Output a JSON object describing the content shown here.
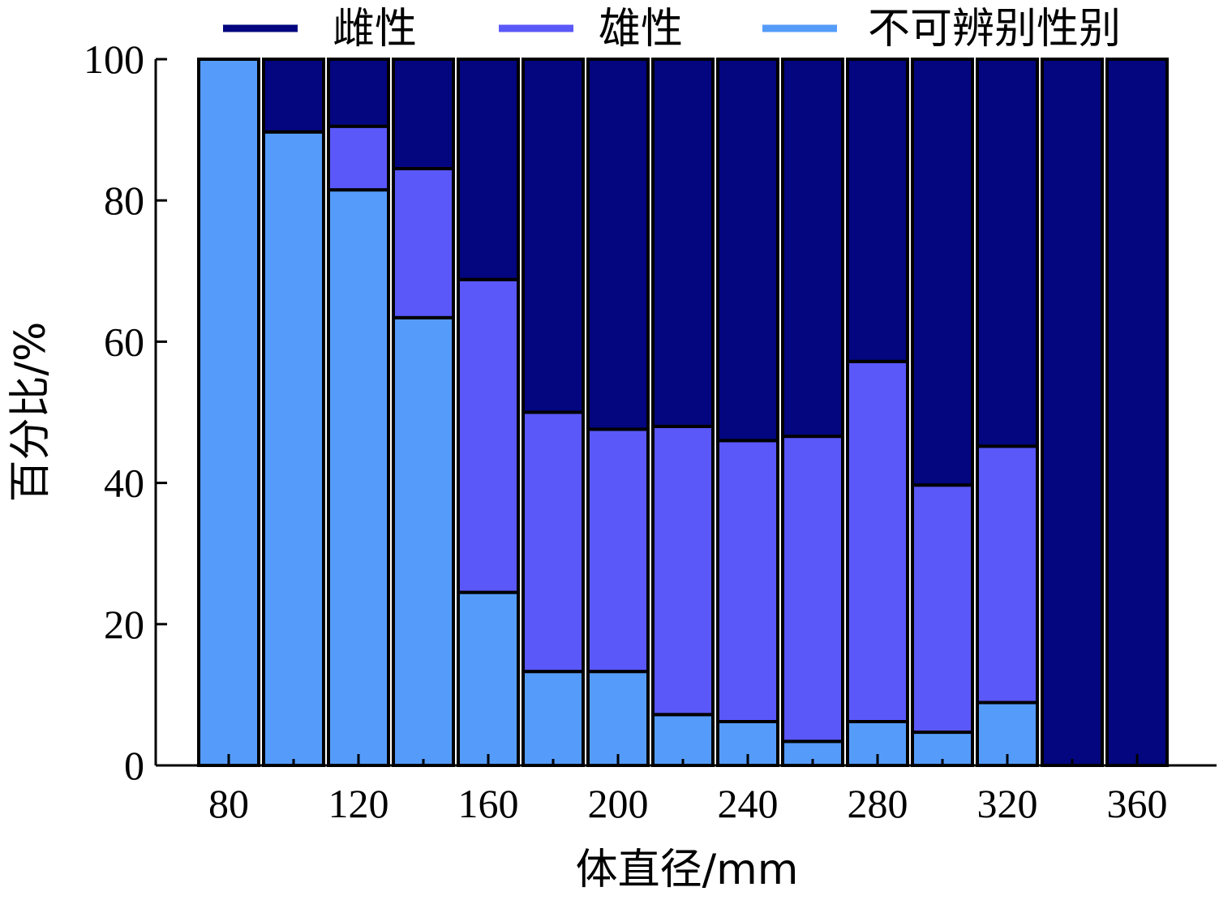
{
  "chart_data": {
    "type": "bar",
    "stacked": true,
    "x_centers": [
      80,
      100,
      120,
      140,
      160,
      180,
      200,
      220,
      240,
      260,
      280,
      300,
      320,
      340,
      360
    ],
    "x_ticks": [
      80,
      120,
      160,
      200,
      240,
      280,
      320,
      360
    ],
    "y_ticks": [
      0,
      20,
      40,
      60,
      80,
      100
    ],
    "xlim": [
      52,
      380
    ],
    "ylim": [
      0,
      100
    ],
    "xlabel": "体直径/mm",
    "ylabel": "百分比/%",
    "legend_position": "top",
    "grid": false,
    "series": [
      {
        "name": "不可辨别性别",
        "color": "#559CFA",
        "values": [
          100,
          89.7,
          81.5,
          63.4,
          24.5,
          13.3,
          13.3,
          7.2,
          6.2,
          3.4,
          6.2,
          4.7,
          8.9,
          0,
          0
        ]
      },
      {
        "name": "雄性",
        "color": "#5A58F8",
        "values": [
          0,
          0,
          9.0,
          21.1,
          44.3,
          36.7,
          34.3,
          40.8,
          39.8,
          43.2,
          51.0,
          35.0,
          36.3,
          0,
          0
        ]
      },
      {
        "name": "雌性",
        "color": "#03067E",
        "values": [
          0,
          10.3,
          9.5,
          15.5,
          31.2,
          50.0,
          52.4,
          52.0,
          54.0,
          53.4,
          42.8,
          60.3,
          54.8,
          100,
          100
        ]
      }
    ],
    "legend_order": [
      2,
      1,
      0
    ]
  }
}
